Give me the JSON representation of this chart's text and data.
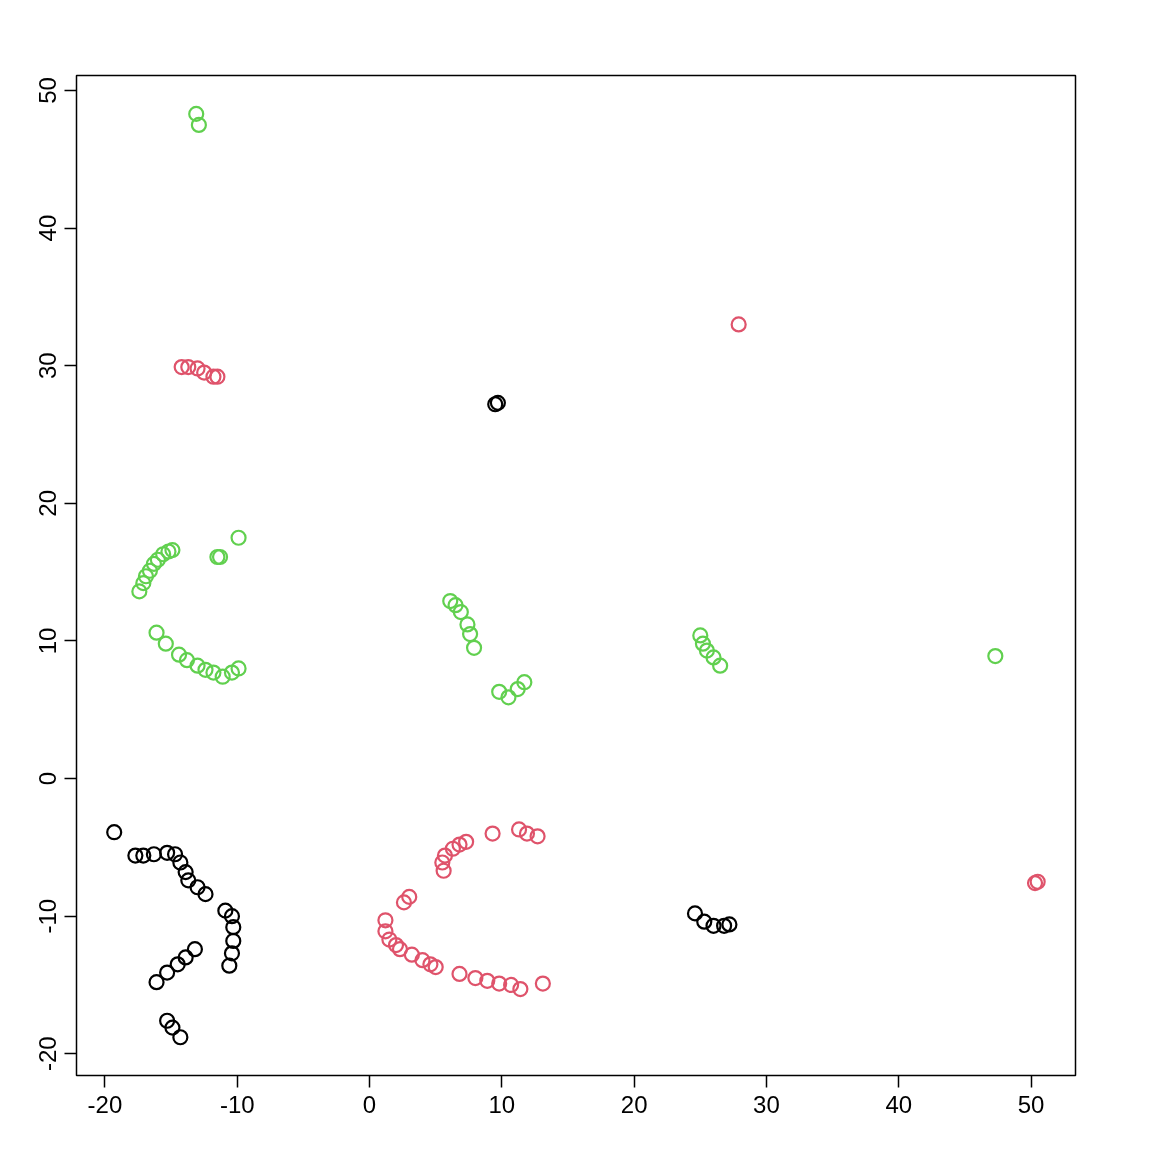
{
  "chart_data": {
    "type": "scatter",
    "marker": "circle",
    "grid": false,
    "xlim": [
      -22.15,
      53.36
    ],
    "ylim": [
      -21.58,
      51.09
    ],
    "xticks": [
      -20,
      -10,
      0,
      10,
      20,
      30,
      40,
      50
    ],
    "yticks": [
      -20,
      -10,
      0,
      10,
      20,
      30,
      40,
      50
    ],
    "series": [
      {
        "color": "#000000",
        "x": [
          9.5,
          9.7,
          -19.3,
          -17.7,
          -17.1,
          -16.3,
          -15.3,
          -14.7,
          -14.3,
          -13.9,
          -13.7,
          -13.0,
          -12.4,
          -10.9,
          -10.4,
          -10.3,
          -10.3,
          -10.4,
          -10.6,
          -16.1,
          -15.3,
          -14.5,
          -13.9,
          -13.2,
          -15.3,
          -14.9,
          -14.3,
          24.6,
          25.3,
          26.0,
          26.8,
          27.2
        ],
        "values": [
          27.2,
          27.3,
          -3.9,
          -5.6,
          -5.6,
          -5.5,
          -5.4,
          -5.5,
          -6.1,
          -6.8,
          -7.4,
          -7.9,
          -8.4,
          -9.6,
          -10.0,
          -10.8,
          -11.8,
          -12.7,
          -13.6,
          -14.8,
          -14.1,
          -13.5,
          -13.0,
          -12.4,
          -17.6,
          -18.1,
          -18.8,
          -9.8,
          -10.4,
          -10.7,
          -10.7,
          -10.6
        ]
      },
      {
        "color": "#df536b",
        "x": [
          27.9,
          -14.2,
          -13.7,
          -13.0,
          -12.5,
          -11.8,
          -11.5,
          50.3,
          50.5,
          1.2,
          1.2,
          1.5,
          2.0,
          2.3,
          3.2,
          4.0,
          4.6,
          5.0,
          6.8,
          8.0,
          8.9,
          9.8,
          10.7,
          11.4,
          13.1,
          2.6,
          3.0,
          5.6,
          5.5,
          5.7,
          6.3,
          6.8,
          7.3,
          9.3,
          11.3,
          11.9,
          12.7
        ],
        "values": [
          33.0,
          29.9,
          29.9,
          29.8,
          29.5,
          29.2,
          29.2,
          -7.6,
          -7.5,
          -10.3,
          -11.1,
          -11.7,
          -12.1,
          -12.4,
          -12.8,
          -13.2,
          -13.5,
          -13.7,
          -14.2,
          -14.5,
          -14.7,
          -14.9,
          -15.0,
          -15.3,
          -14.9,
          -9.0,
          -8.6,
          -6.7,
          -6.1,
          -5.6,
          -5.1,
          -4.8,
          -4.6,
          -4.0,
          -3.7,
          -4.0,
          -4.2
        ]
      },
      {
        "color": "#61d04f",
        "x": [
          -13.1,
          -12.9,
          -17.4,
          -17.1,
          -16.9,
          -16.6,
          -16.3,
          -16.0,
          -15.6,
          -15.2,
          -14.9,
          -11.5,
          -11.3,
          -9.9,
          -16.1,
          -15.4,
          -14.4,
          -13.8,
          -13.0,
          -12.4,
          -11.8,
          -11.1,
          -10.4,
          -9.9,
          6.1,
          6.5,
          6.9,
          7.4,
          7.6,
          7.9,
          9.8,
          10.5,
          11.2,
          11.7,
          25.0,
          25.2,
          25.5,
          26.0,
          26.5,
          47.3
        ],
        "values": [
          48.3,
          47.5,
          13.6,
          14.2,
          14.7,
          15.1,
          15.6,
          15.9,
          16.3,
          16.5,
          16.6,
          16.1,
          16.1,
          17.5,
          10.6,
          9.8,
          9.0,
          8.6,
          8.2,
          7.9,
          7.7,
          7.4,
          7.7,
          8.0,
          12.9,
          12.6,
          12.1,
          11.2,
          10.5,
          9.5,
          6.3,
          5.9,
          6.5,
          7.0,
          10.4,
          9.8,
          9.3,
          8.8,
          8.2,
          8.9
        ]
      }
    ]
  }
}
